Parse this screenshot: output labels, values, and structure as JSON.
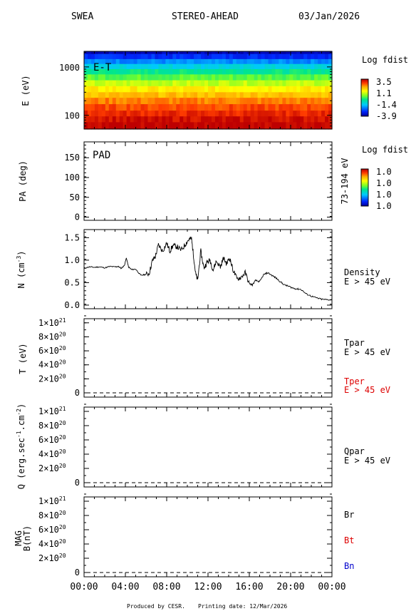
{
  "header": {
    "instrument": "SWEA",
    "spacecraft": "STEREO-AHEAD",
    "date": "03/Jan/2026"
  },
  "footer": {
    "produced": "Produced by CESR.",
    "printing": "Printing date: 12/Mar/2026"
  },
  "chart_data": [
    {
      "type": "heatmap",
      "ylabel": "E (eV)",
      "yscale": "log",
      "yticks": [
        "1000",
        "100"
      ],
      "label": "E-T",
      "colorbar_title": "Log fdist",
      "colorbar_ticks": [
        "3.5",
        "1.1",
        "-1.4",
        "-3.9"
      ],
      "energy_bands": [
        {
          "e_min": 1850,
          "e_max": 2100,
          "log_fdist": -3.7
        },
        {
          "e_min": 1450,
          "e_max": 1850,
          "log_fdist": -3.0
        },
        {
          "e_min": 1150,
          "e_max": 1450,
          "log_fdist": -2.2
        },
        {
          "e_min": 900,
          "e_max": 1150,
          "log_fdist": -1.4
        },
        {
          "e_min": 700,
          "e_max": 900,
          "log_fdist": -0.6
        },
        {
          "e_min": 530,
          "e_max": 700,
          "log_fdist": 0.0
        },
        {
          "e_min": 400,
          "e_max": 530,
          "log_fdist": 0.7
        },
        {
          "e_min": 300,
          "e_max": 400,
          "log_fdist": 1.3
        },
        {
          "e_min": 230,
          "e_max": 300,
          "log_fdist": 1.8
        },
        {
          "e_min": 170,
          "e_max": 230,
          "log_fdist": 2.3
        },
        {
          "e_min": 125,
          "e_max": 170,
          "log_fdist": 2.7
        },
        {
          "e_min": 95,
          "e_max": 125,
          "log_fdist": 3.0
        },
        {
          "e_min": 72,
          "e_max": 95,
          "log_fdist": 3.3
        },
        {
          "e_min": 52,
          "e_max": 72,
          "log_fdist": 3.5
        }
      ]
    },
    {
      "type": "heatmap",
      "ylabel": "PA (deg)",
      "yticks": [
        "150",
        "100",
        "50",
        "0"
      ],
      "ylim": [
        0,
        180
      ],
      "label": "PAD",
      "right_label": "73-194 eV",
      "colorbar_title": "Log fdist",
      "colorbar_ticks": [
        "1.0",
        "1.0",
        "1.0",
        "1.0"
      ]
    },
    {
      "type": "line",
      "ylabel": "N (cm-3)",
      "yticks": [
        "1.5",
        "1.0",
        "0.5",
        "0.0"
      ],
      "ylim": [
        0,
        1.65
      ],
      "legend": [
        {
          "name": "Density",
          "sub": "E > 45 eV",
          "color": "#000000"
        }
      ],
      "x_hours": [
        0.0,
        0.5,
        1.0,
        1.5,
        2.0,
        2.5,
        3.0,
        3.3,
        3.6,
        3.9,
        4.1,
        4.3,
        4.6,
        5.0,
        5.5,
        5.9,
        6.3,
        6.6,
        6.9,
        7.2,
        7.6,
        8.0,
        8.3,
        8.6,
        9.0,
        9.4,
        9.8,
        10.1,
        10.4,
        10.6,
        10.8,
        11.0,
        11.3,
        11.6,
        11.9,
        12.2,
        12.5,
        12.8,
        13.2,
        13.5,
        13.8,
        14.1,
        14.4,
        14.8,
        15.2,
        15.6,
        16.0,
        16.3,
        16.6,
        17.0,
        17.4,
        17.8,
        18.2,
        18.6,
        19.0,
        19.4,
        19.8,
        20.2,
        20.6,
        21.0,
        21.5,
        22.0,
        22.5,
        23.0,
        23.5,
        24.0
      ],
      "y": [
        0.82,
        0.85,
        0.84,
        0.85,
        0.83,
        0.86,
        0.85,
        0.86,
        0.82,
        0.88,
        1.05,
        0.85,
        0.79,
        0.8,
        0.66,
        0.68,
        0.7,
        0.98,
        1.08,
        1.34,
        1.2,
        1.38,
        1.2,
        1.32,
        1.3,
        1.22,
        1.35,
        1.45,
        1.48,
        1.1,
        0.7,
        0.55,
        1.2,
        0.82,
        0.95,
        1.0,
        0.78,
        0.98,
        0.85,
        1.05,
        0.92,
        1.05,
        0.8,
        0.58,
        0.62,
        0.72,
        0.48,
        0.45,
        0.55,
        0.52,
        0.68,
        0.72,
        0.66,
        0.6,
        0.52,
        0.45,
        0.42,
        0.38,
        0.36,
        0.35,
        0.25,
        0.2,
        0.16,
        0.13,
        0.12,
        0.12
      ]
    },
    {
      "type": "line",
      "ylabel": "T (eV)",
      "yticks": [
        "1×10^21",
        "8×10^20",
        "6×10^20",
        "4×10^20",
        "2×10^20",
        "0"
      ],
      "ylim": [
        0,
        1.1e+21
      ],
      "legend": [
        {
          "name": "Tpar",
          "sub": "E > 45 eV",
          "color": "#000000"
        },
        {
          "name": "Tper",
          "sub": "E > 45 eV",
          "color": "#dd0000"
        }
      ],
      "series": [
        {
          "name": "Tpar",
          "values": [
            0,
            0
          ]
        }
      ]
    },
    {
      "type": "line",
      "ylabel": "Q (erg.sec-1.cm-2)",
      "yticks": [
        "1×10^21",
        "8×10^20",
        "6×10^20",
        "4×10^20",
        "2×10^20",
        "0"
      ],
      "ylim": [
        0,
        1.1e+21
      ],
      "legend": [
        {
          "name": "Qpar",
          "sub": "E > 45 eV",
          "color": "#000000"
        }
      ],
      "series": [
        {
          "name": "Qpar",
          "values": [
            0,
            0
          ]
        }
      ]
    },
    {
      "type": "line",
      "ylabel": "MAG B(nT)",
      "yticks": [
        "1×10^21",
        "8×10^20",
        "6×10^20",
        "4×10^20",
        "2×10^20",
        "0"
      ],
      "ylim": [
        0,
        1.1e+21
      ],
      "legend": [
        {
          "name": "Br",
          "color": "#000000"
        },
        {
          "name": "Bt",
          "color": "#dd0000"
        },
        {
          "name": "Bn",
          "color": "#0000cc"
        }
      ],
      "series": [
        {
          "name": "Br",
          "values": [
            0,
            0
          ]
        }
      ]
    }
  ],
  "x_axis": {
    "ticks": [
      "00:00",
      "04:00",
      "08:00",
      "12:00",
      "16:00",
      "20:00",
      "00:00"
    ]
  }
}
